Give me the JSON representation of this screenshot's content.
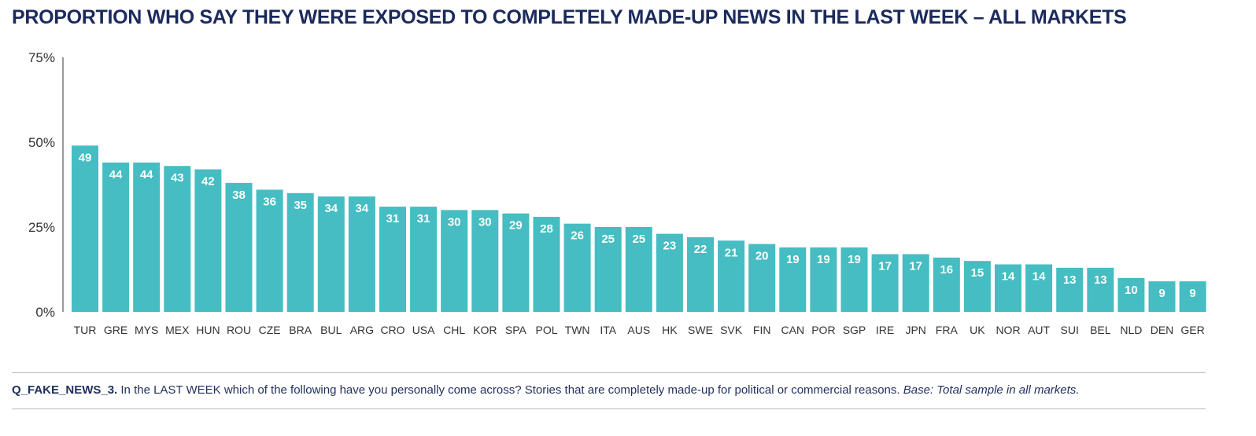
{
  "title": "PROPORTION WHO SAY THEY WERE EXPOSED TO COMPLETELY MADE-UP NEWS IN THE LAST WEEK – ALL MARKETS",
  "footnote": {
    "code": "Q_FAKE_NEWS_3.",
    "question": " In the LAST WEEK which of the following have you personally come across? Stories that are completely made-up for political or commercial reasons. ",
    "base": "Base: Total sample in all markets."
  },
  "colors": {
    "bar": "#45bdc2",
    "label": "#ffffff",
    "axis": "#333333",
    "text": "#1f2f5e"
  },
  "chart_data": {
    "type": "bar",
    "title": "PROPORTION WHO SAY THEY WERE EXPOSED TO COMPLETELY MADE-UP NEWS IN THE LAST WEEK – ALL MARKETS",
    "xlabel": "",
    "ylabel": "",
    "ylim": [
      0,
      75
    ],
    "yticks": [
      0,
      25,
      50,
      75
    ],
    "ytick_labels": [
      "0%",
      "25%",
      "50%",
      "75%"
    ],
    "grid": false,
    "categories": [
      "TUR",
      "GRE",
      "MYS",
      "MEX",
      "HUN",
      "ROU",
      "CZE",
      "BRA",
      "BUL",
      "ARG",
      "CRO",
      "USA",
      "CHL",
      "KOR",
      "SPA",
      "POL",
      "TWN",
      "ITA",
      "AUS",
      "HK",
      "SWE",
      "SVK",
      "FIN",
      "CAN",
      "POR",
      "SGP",
      "IRE",
      "JPN",
      "FRA",
      "UK",
      "NOR",
      "AUT",
      "SUI",
      "BEL",
      "NLD",
      "DEN",
      "GER"
    ],
    "values": [
      49,
      44,
      44,
      43,
      42,
      38,
      36,
      35,
      34,
      34,
      31,
      31,
      30,
      30,
      29,
      28,
      26,
      25,
      25,
      23,
      22,
      21,
      20,
      19,
      19,
      19,
      17,
      17,
      16,
      15,
      14,
      14,
      13,
      13,
      10,
      9,
      9
    ]
  }
}
